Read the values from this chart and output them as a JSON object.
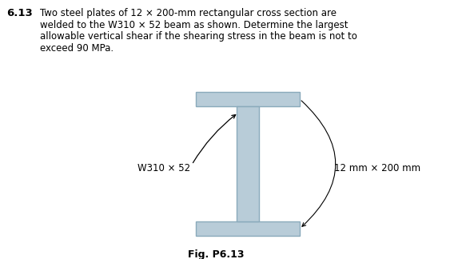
{
  "problem_number": "6.13",
  "problem_text_line1": "Two steel plates of 12 × 200-mm rectangular cross section are",
  "problem_text_line2": "welded to the W310 × 52 beam as shown. Determine the largest",
  "problem_text_line3": "allowable vertical shear if the shearing stress in the beam is not to",
  "problem_text_line4": "exceed 90 MPa.",
  "fig_label": "Fig. P6.13",
  "beam_label": "W310 × 52",
  "plate_label": "12 mm × 200 mm",
  "background_color": "#ffffff",
  "beam_fill_color": "#b8ccd8",
  "beam_edge_color": "#8aaabb",
  "figure_width": 5.88,
  "figure_height": 3.24,
  "dpi": 100
}
